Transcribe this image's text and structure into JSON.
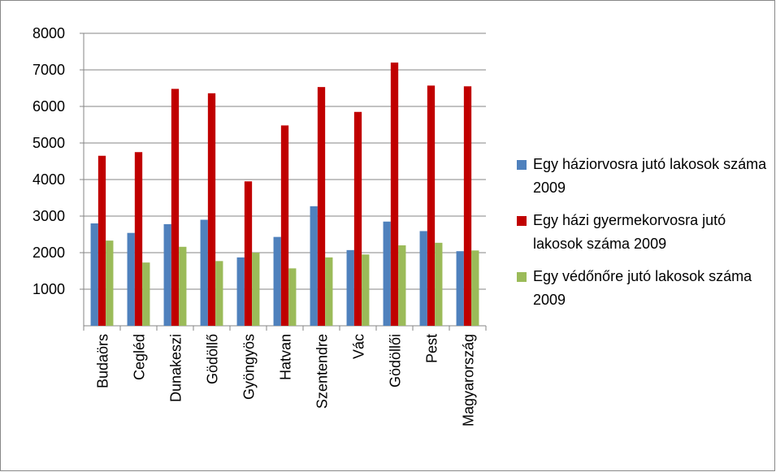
{
  "chart_data": {
    "type": "bar",
    "categories": [
      "Budaörs",
      "Cegléd",
      "Dunakeszi",
      "Gödöllő",
      "Gyöngyös",
      "Hatvan",
      "Szentendre",
      "Vác",
      "Gödöllői",
      "Pest",
      "Magyarország"
    ],
    "series": [
      {
        "name": "Egy háziorvosra jutó lakosok száma 2009",
        "color": "#4f81bd",
        "values": [
          2800,
          2540,
          2780,
          2900,
          1870,
          2430,
          3270,
          2070,
          2850,
          2590,
          2040
        ]
      },
      {
        "name": "Egy házi gyermekorvosra jutó lakosok száma 2009",
        "color": "#c00000",
        "values": [
          4650,
          4750,
          6480,
          6360,
          3950,
          5480,
          6530,
          5850,
          7200,
          6570,
          6550
        ]
      },
      {
        "name": "Egy védőnőre jutó lakosok száma 2009",
        "color": "#9bbb59",
        "values": [
          2330,
          1730,
          2160,
          1770,
          2000,
          1570,
          1870,
          1950,
          2200,
          2270,
          2060
        ]
      }
    ],
    "ylim": [
      0,
      8000
    ],
    "yticks": [
      1000,
      2000,
      3000,
      4000,
      5000,
      6000,
      7000,
      8000
    ],
    "grid": true,
    "legend": "right"
  }
}
